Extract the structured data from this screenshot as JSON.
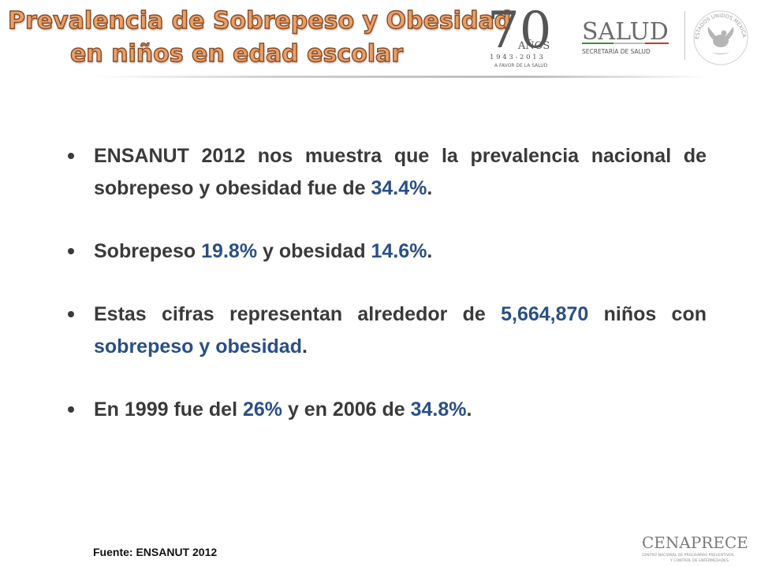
{
  "title": {
    "line1": "Prevalencia de Sobrepeso y Obesidad",
    "line2": "en niños en edad escolar"
  },
  "logos": {
    "anniversary": {
      "number": "70",
      "word": "AÑOS",
      "years": "1 9 4 3  -  2 0 1 3",
      "tagline": "A FAVOR DE LA SALUD"
    },
    "salud": {
      "name": "SALUD",
      "subtitle": "SECRETARÍA DE SALUD"
    },
    "seal": {
      "text": "ESTADOS UNIDOS MEXICANOS"
    },
    "cenaprece": {
      "name": "CENAPRECE",
      "line1": "CENTRO NACIONAL DE PROGRAMAS PREVENTIVOS",
      "line2": "Y CONTROL DE ENFERMEDADES"
    }
  },
  "bullets": [
    {
      "b1_text1": "ENSANUT 2012 nos muestra que  la prevalencia nacional de sobrepeso y obesidad fue de ",
      "b1_hl1": "34.4%",
      "b1_text2": "."
    },
    {
      "b2_text1": "Sobrepeso ",
      "b2_hl1": "19.8%",
      "b2_text2": " y obesidad ",
      "b2_hl2": "14.6%",
      "b2_text3": "."
    },
    {
      "b3_text1": "Estas cifras representan alrededor de ",
      "b3_hl1": "5,664,870",
      "b3_text2": " niños con ",
      "b3_hl2": "sobrepeso y obesidad",
      "b3_text3": "."
    },
    {
      "b4_text1": "En 1999 fue del ",
      "b4_hl1": "26%",
      "b4_text2": " y en 2006 de ",
      "b4_hl2": "34.8%",
      "b4_text3": "."
    }
  ],
  "source": "Fuente: ENSANUT 2012",
  "colors": {
    "title_fill": "#e8a06a",
    "title_outline": "#8a4a22",
    "body_text": "#3a3a3a",
    "highlight": "#2a4f86",
    "gold": "#b08a2a"
  }
}
